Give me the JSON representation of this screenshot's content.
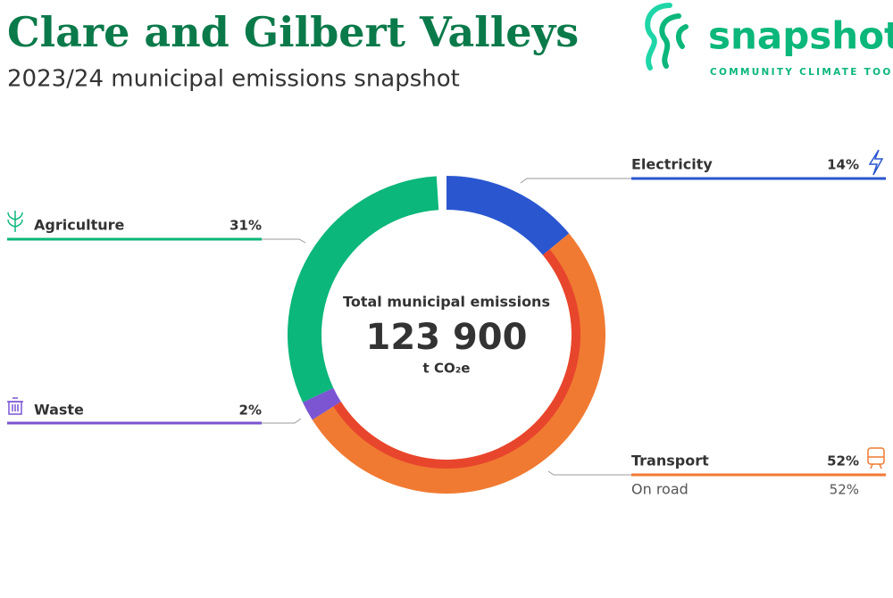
{
  "title": "Clare and Gilbert Valleys",
  "subtitle": "2023/24 municipal emissions snapshot",
  "logo": {
    "name": "snapshot",
    "tagline": "COMMUNITY CLIMATE TOOL"
  },
  "chart_data": {
    "type": "donut",
    "center_label": "Total municipal emissions",
    "total": {
      "value": 123900,
      "label": "123 900"
    },
    "unit": "t CO₂e",
    "categories": [
      "Electricity",
      "Transport",
      "Waste",
      "Agriculture"
    ],
    "values": [
      14,
      52,
      2,
      31
    ],
    "value_labels": [
      "14%",
      "52%",
      "2%",
      "31%"
    ],
    "colors": [
      "#2a56d0",
      "#f07a32",
      "#7b55d2",
      "#0bb77a"
    ],
    "sub_series": [
      {
        "name": "On road",
        "color": "#e8452d",
        "values": [
          null,
          52,
          null,
          null
        ],
        "value_labels": [
          null,
          "52%",
          null,
          null
        ]
      }
    ]
  }
}
